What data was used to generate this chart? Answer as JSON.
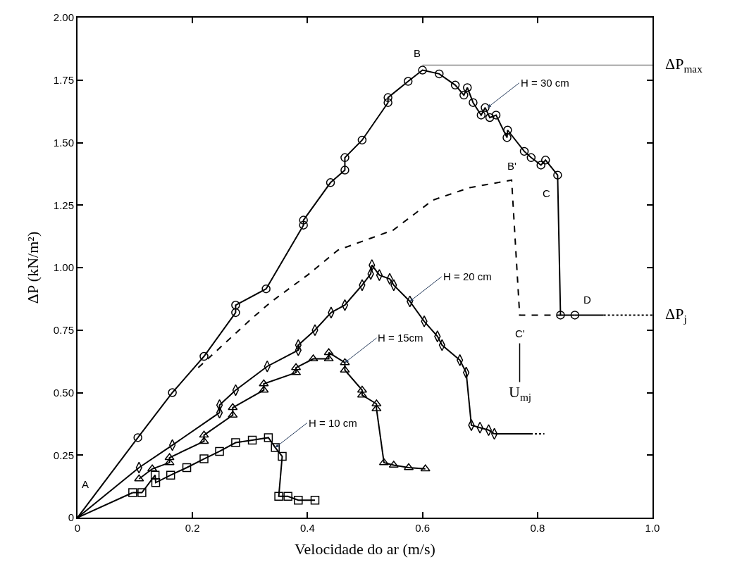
{
  "chart_data": {
    "type": "line",
    "xlabel": "Velocidade do ar (m/s)",
    "ylabel": "ΔP (kN/m²)",
    "xlim": [
      0,
      1.0
    ],
    "xticks": [
      0,
      0.2,
      0.4,
      0.6,
      0.8,
      {
        "value": 1.0,
        "label": "1.0"
      }
    ],
    "ylim": [
      0,
      2.0
    ],
    "yticks": [
      0,
      0.25,
      {
        "value": 0.5,
        "label": "0.50"
      },
      0.75,
      {
        "value": 1.0,
        "label": "1.00"
      },
      1.25,
      {
        "value": 1.5,
        "label": "1.50"
      },
      1.75,
      {
        "value": 2.0,
        "label": "2.00"
      }
    ],
    "series": [
      {
        "color": "#000000",
        "marker": "circle",
        "line_style": "solid",
        "x": [
          0.105,
          0.165,
          0.22,
          0.275,
          0.275,
          0.328,
          0.393,
          0.393,
          0.44,
          0.465,
          0.465,
          0.495,
          0.54,
          0.54,
          0.575,
          0.6,
          0.629,
          0.657,
          0.672,
          0.678,
          0.688,
          0.702,
          0.709,
          0.717,
          0.728,
          0.747,
          0.748,
          0.777,
          0.789,
          0.806,
          0.814,
          0.835,
          0.84,
          0.865
        ],
        "values": [
          0.32,
          0.5,
          0.645,
          0.82,
          0.85,
          0.915,
          1.17,
          1.19,
          1.34,
          1.39,
          1.44,
          1.51,
          1.66,
          1.68,
          1.745,
          1.79,
          1.775,
          1.73,
          1.69,
          1.72,
          1.66,
          1.61,
          1.64,
          1.6,
          1.61,
          1.52,
          1.55,
          1.465,
          1.44,
          1.41,
          1.43,
          1.37,
          0.81,
          0.81
        ]
      },
      {
        "color": "#000000",
        "marker": "diamond",
        "line_style": "solid",
        "x": [
          0.107,
          0.165,
          0.247,
          0.247,
          0.275,
          0.33,
          0.384,
          0.384,
          0.413,
          0.441,
          0.465,
          0.495,
          0.51,
          0.512,
          0.525,
          0.543,
          0.55,
          0.578,
          0.603,
          0.626,
          0.634,
          0.665,
          0.676,
          0.685,
          0.7,
          0.715,
          0.725
        ],
        "values": [
          0.2,
          0.29,
          0.42,
          0.45,
          0.51,
          0.605,
          0.67,
          0.69,
          0.75,
          0.82,
          0.85,
          0.93,
          0.975,
          1.01,
          0.97,
          0.955,
          0.93,
          0.865,
          0.785,
          0.725,
          0.69,
          0.63,
          0.58,
          0.37,
          0.36,
          0.35,
          0.335
        ]
      },
      {
        "color": "#000000",
        "marker": "triangle",
        "line_style": "solid",
        "x": [
          0.107,
          0.13,
          0.16,
          0.16,
          0.22,
          0.22,
          0.27,
          0.27,
          0.324,
          0.324,
          0.38,
          0.38,
          0.41,
          0.437,
          0.437,
          0.465,
          0.465,
          0.495,
          0.495,
          0.52,
          0.52,
          0.533,
          0.55,
          0.576,
          0.605
        ],
        "values": [
          0.155,
          0.195,
          0.22,
          0.24,
          0.305,
          0.33,
          0.41,
          0.44,
          0.51,
          0.535,
          0.58,
          0.6,
          0.635,
          0.635,
          0.66,
          0.62,
          0.59,
          0.51,
          0.49,
          0.455,
          0.435,
          0.22,
          0.21,
          0.2,
          0.195
        ]
      },
      {
        "color": "#000000",
        "marker": "square",
        "line_style": "solid",
        "x": [
          0.096,
          0.112,
          0.135,
          0.136,
          0.162,
          0.19,
          0.22,
          0.247,
          0.275,
          0.304,
          0.332,
          0.344,
          0.356,
          0.35,
          0.366,
          0.384,
          0.413
        ],
        "values": [
          0.1,
          0.1,
          0.17,
          0.14,
          0.17,
          0.2,
          0.235,
          0.265,
          0.3,
          0.31,
          0.32,
          0.28,
          0.245,
          0.085,
          0.085,
          0.07,
          0.07
        ]
      },
      {
        "color": "#000000",
        "marker": "none",
        "line_style": "solid",
        "x": [
          0,
          0.105,
          null,
          0,
          0.107,
          null,
          0,
          0.096,
          null,
          0.865,
          0.915,
          null,
          0.725,
          0.788
        ],
        "values": [
          0,
          0.32,
          null,
          0,
          0.2,
          null,
          0,
          0.1,
          null,
          0.81,
          0.81,
          null,
          0.335,
          0.335
        ]
      },
      {
        "color": "#000000",
        "marker": "none",
        "line_style": "dotted",
        "x": [
          0.915,
          1.0,
          null,
          0.788,
          0.812
        ],
        "values": [
          0.81,
          0.81,
          null,
          0.335,
          0.335
        ]
      },
      {
        "color": "#000000",
        "marker": "none",
        "line_style": "dashed",
        "x": [
          0.21,
          0.3,
          0.335,
          0.4,
          0.453,
          0.549,
          0.618,
          0.682,
          0.755,
          0.769,
          0.84
        ],
        "values": [
          0.6,
          0.79,
          0.86,
          0.97,
          1.07,
          1.15,
          1.27,
          1.32,
          1.35,
          0.81,
          0.81
        ]
      }
    ],
    "ref_lines": [
      {
        "axis": "y",
        "value": 1.81,
        "label": "ΔP$_{max}$",
        "color": "#888888"
      }
    ],
    "annotations": [
      {
        "text": "H = 30 cm",
        "x": 0.713,
        "y": 1.64
      },
      {
        "text": "H = 20 cm",
        "x": 0.578,
        "y": 0.865
      },
      {
        "text": "H = 15cm",
        "x": 0.465,
        "y": 0.62
      },
      {
        "text": "H = 10 cm",
        "x": 0.344,
        "y": 0.28
      },
      {
        "text": "A",
        "x": 0,
        "y": 0
      },
      {
        "text": "B",
        "x": 0.6,
        "y": 1.79
      },
      {
        "text": "B'",
        "x": 0.755,
        "y": 1.35
      },
      {
        "text": "C",
        "x": 0.835,
        "y": 1.37
      },
      {
        "text": "C'",
        "x": 0.769,
        "y": 0.81
      },
      {
        "text": "D",
        "x": 0.865,
        "y": 0.81
      },
      {
        "text": "U$_{mj}$",
        "x": 0.769,
        "y": 0.81
      },
      {
        "text": "ΔP$_{j}$",
        "x": 1.0,
        "y": 0.81
      }
    ]
  }
}
